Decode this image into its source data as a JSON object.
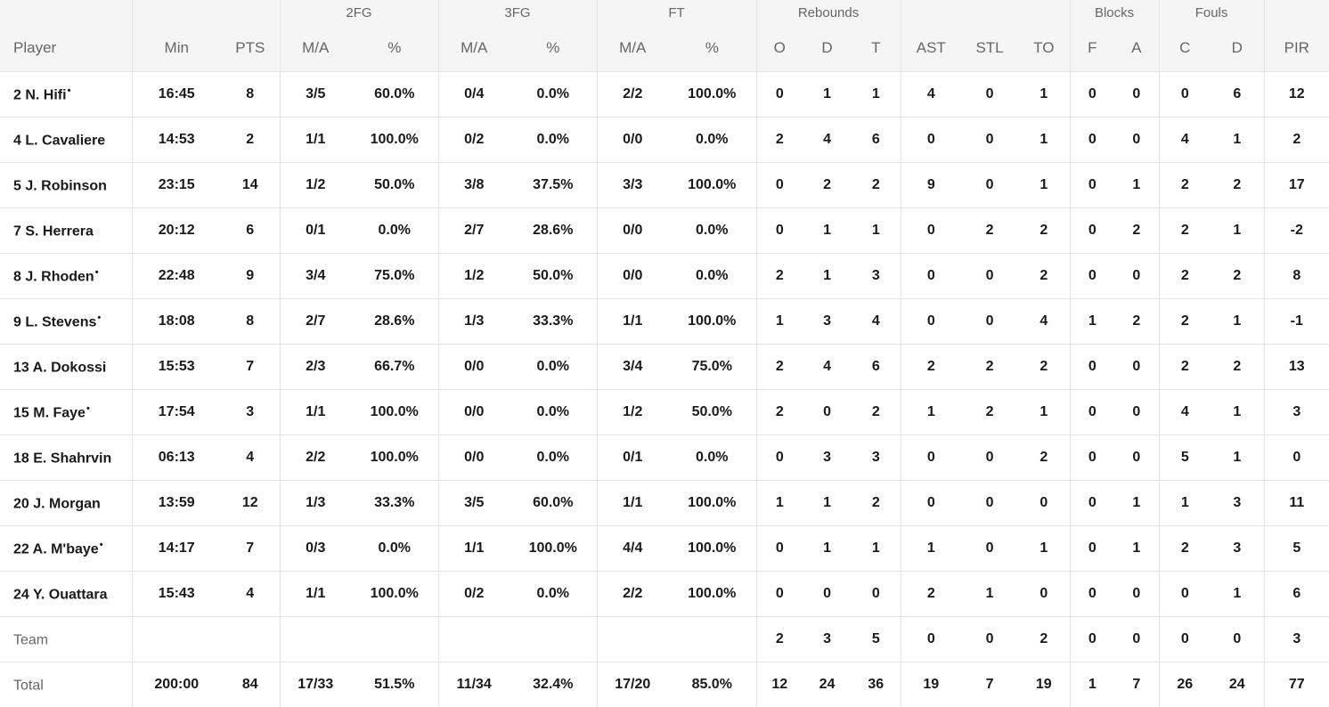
{
  "header": {
    "groups": {
      "fg2": "2FG",
      "fg3": "3FG",
      "ft": "FT",
      "rebounds": "Rebounds",
      "blocks": "Blocks",
      "fouls": "Fouls"
    },
    "columns": {
      "player": "Player",
      "min": "Min",
      "pts": "PTS",
      "fg2_ma": "M/A",
      "fg2_pct": "%",
      "fg3_ma": "M/A",
      "fg3_pct": "%",
      "ft_ma": "M/A",
      "ft_pct": "%",
      "reb_o": "O",
      "reb_d": "D",
      "reb_t": "T",
      "ast": "AST",
      "stl": "STL",
      "to": "TO",
      "blk_f": "F",
      "blk_a": "A",
      "foul_c": "C",
      "foul_d": "D",
      "pir": "PIR"
    }
  },
  "rows": [
    {
      "player": "2 N. Hifi",
      "starter": "•",
      "min": "16:45",
      "pts": "8",
      "fg2_ma": "3/5",
      "fg2_pct": "60.0%",
      "fg3_ma": "0/4",
      "fg3_pct": "0.0%",
      "ft_ma": "2/2",
      "ft_pct": "100.0%",
      "reb_o": "0",
      "reb_d": "1",
      "reb_t": "1",
      "ast": "4",
      "stl": "0",
      "to": "1",
      "blk_f": "0",
      "blk_a": "0",
      "foul_c": "0",
      "foul_d": "6",
      "pir": "12"
    },
    {
      "player": "4 L. Cavaliere",
      "starter": "",
      "min": "14:53",
      "pts": "2",
      "fg2_ma": "1/1",
      "fg2_pct": "100.0%",
      "fg3_ma": "0/2",
      "fg3_pct": "0.0%",
      "ft_ma": "0/0",
      "ft_pct": "0.0%",
      "reb_o": "2",
      "reb_d": "4",
      "reb_t": "6",
      "ast": "0",
      "stl": "0",
      "to": "1",
      "blk_f": "0",
      "blk_a": "0",
      "foul_c": "4",
      "foul_d": "1",
      "pir": "2"
    },
    {
      "player": "5 J. Robinson",
      "starter": "",
      "min": "23:15",
      "pts": "14",
      "fg2_ma": "1/2",
      "fg2_pct": "50.0%",
      "fg3_ma": "3/8",
      "fg3_pct": "37.5%",
      "ft_ma": "3/3",
      "ft_pct": "100.0%",
      "reb_o": "0",
      "reb_d": "2",
      "reb_t": "2",
      "ast": "9",
      "stl": "0",
      "to": "1",
      "blk_f": "0",
      "blk_a": "1",
      "foul_c": "2",
      "foul_d": "2",
      "pir": "17"
    },
    {
      "player": "7 S. Herrera",
      "starter": "",
      "min": "20:12",
      "pts": "6",
      "fg2_ma": "0/1",
      "fg2_pct": "0.0%",
      "fg3_ma": "2/7",
      "fg3_pct": "28.6%",
      "ft_ma": "0/0",
      "ft_pct": "0.0%",
      "reb_o": "0",
      "reb_d": "1",
      "reb_t": "1",
      "ast": "0",
      "stl": "2",
      "to": "2",
      "blk_f": "0",
      "blk_a": "2",
      "foul_c": "2",
      "foul_d": "1",
      "pir": "-2"
    },
    {
      "player": "8 J. Rhoden",
      "starter": "•",
      "min": "22:48",
      "pts": "9",
      "fg2_ma": "3/4",
      "fg2_pct": "75.0%",
      "fg3_ma": "1/2",
      "fg3_pct": "50.0%",
      "ft_ma": "0/0",
      "ft_pct": "0.0%",
      "reb_o": "2",
      "reb_d": "1",
      "reb_t": "3",
      "ast": "0",
      "stl": "0",
      "to": "2",
      "blk_f": "0",
      "blk_a": "0",
      "foul_c": "2",
      "foul_d": "2",
      "pir": "8"
    },
    {
      "player": "9 L. Stevens",
      "starter": "•",
      "min": "18:08",
      "pts": "8",
      "fg2_ma": "2/7",
      "fg2_pct": "28.6%",
      "fg3_ma": "1/3",
      "fg3_pct": "33.3%",
      "ft_ma": "1/1",
      "ft_pct": "100.0%",
      "reb_o": "1",
      "reb_d": "3",
      "reb_t": "4",
      "ast": "0",
      "stl": "0",
      "to": "4",
      "blk_f": "1",
      "blk_a": "2",
      "foul_c": "2",
      "foul_d": "1",
      "pir": "-1"
    },
    {
      "player": "13 A. Dokossi",
      "starter": "",
      "min": "15:53",
      "pts": "7",
      "fg2_ma": "2/3",
      "fg2_pct": "66.7%",
      "fg3_ma": "0/0",
      "fg3_pct": "0.0%",
      "ft_ma": "3/4",
      "ft_pct": "75.0%",
      "reb_o": "2",
      "reb_d": "4",
      "reb_t": "6",
      "ast": "2",
      "stl": "2",
      "to": "2",
      "blk_f": "0",
      "blk_a": "0",
      "foul_c": "2",
      "foul_d": "2",
      "pir": "13"
    },
    {
      "player": "15 M. Faye",
      "starter": "•",
      "min": "17:54",
      "pts": "3",
      "fg2_ma": "1/1",
      "fg2_pct": "100.0%",
      "fg3_ma": "0/0",
      "fg3_pct": "0.0%",
      "ft_ma": "1/2",
      "ft_pct": "50.0%",
      "reb_o": "2",
      "reb_d": "0",
      "reb_t": "2",
      "ast": "1",
      "stl": "2",
      "to": "1",
      "blk_f": "0",
      "blk_a": "0",
      "foul_c": "4",
      "foul_d": "1",
      "pir": "3"
    },
    {
      "player": "18 E. Shahrvin",
      "starter": "",
      "min": "06:13",
      "pts": "4",
      "fg2_ma": "2/2",
      "fg2_pct": "100.0%",
      "fg3_ma": "0/0",
      "fg3_pct": "0.0%",
      "ft_ma": "0/1",
      "ft_pct": "0.0%",
      "reb_o": "0",
      "reb_d": "3",
      "reb_t": "3",
      "ast": "0",
      "stl": "0",
      "to": "2",
      "blk_f": "0",
      "blk_a": "0",
      "foul_c": "5",
      "foul_d": "1",
      "pir": "0"
    },
    {
      "player": "20 J. Morgan",
      "starter": "",
      "min": "13:59",
      "pts": "12",
      "fg2_ma": "1/3",
      "fg2_pct": "33.3%",
      "fg3_ma": "3/5",
      "fg3_pct": "60.0%",
      "ft_ma": "1/1",
      "ft_pct": "100.0%",
      "reb_o": "1",
      "reb_d": "1",
      "reb_t": "2",
      "ast": "0",
      "stl": "0",
      "to": "0",
      "blk_f": "0",
      "blk_a": "1",
      "foul_c": "1",
      "foul_d": "3",
      "pir": "11"
    },
    {
      "player": "22 A. M'baye",
      "starter": "•",
      "min": "14:17",
      "pts": "7",
      "fg2_ma": "0/3",
      "fg2_pct": "0.0%",
      "fg3_ma": "1/1",
      "fg3_pct": "100.0%",
      "ft_ma": "4/4",
      "ft_pct": "100.0%",
      "reb_o": "0",
      "reb_d": "1",
      "reb_t": "1",
      "ast": "1",
      "stl": "0",
      "to": "1",
      "blk_f": "0",
      "blk_a": "1",
      "foul_c": "2",
      "foul_d": "3",
      "pir": "5"
    },
    {
      "player": "24 Y. Ouattara",
      "starter": "",
      "min": "15:43",
      "pts": "4",
      "fg2_ma": "1/1",
      "fg2_pct": "100.0%",
      "fg3_ma": "0/2",
      "fg3_pct": "0.0%",
      "ft_ma": "2/2",
      "ft_pct": "100.0%",
      "reb_o": "0",
      "reb_d": "0",
      "reb_t": "0",
      "ast": "2",
      "stl": "1",
      "to": "0",
      "blk_f": "0",
      "blk_a": "0",
      "foul_c": "0",
      "foul_d": "1",
      "pir": "6"
    }
  ],
  "team": {
    "player": "Team",
    "min": "",
    "pts": "",
    "fg2_ma": "",
    "fg2_pct": "",
    "fg3_ma": "",
    "fg3_pct": "",
    "ft_ma": "",
    "ft_pct": "",
    "reb_o": "2",
    "reb_d": "3",
    "reb_t": "5",
    "ast": "0",
    "stl": "0",
    "to": "2",
    "blk_f": "0",
    "blk_a": "0",
    "foul_c": "0",
    "foul_d": "0",
    "pir": "3"
  },
  "total": {
    "player": "Total",
    "min": "200:00",
    "pts": "84",
    "fg2_ma": "17/33",
    "fg2_pct": "51.5%",
    "fg3_ma": "11/34",
    "fg3_pct": "32.4%",
    "ft_ma": "17/20",
    "ft_pct": "85.0%",
    "reb_o": "12",
    "reb_d": "24",
    "reb_t": "36",
    "ast": "19",
    "stl": "7",
    "to": "19",
    "blk_f": "1",
    "blk_a": "7",
    "foul_c": "26",
    "foul_d": "24",
    "pir": "77"
  }
}
